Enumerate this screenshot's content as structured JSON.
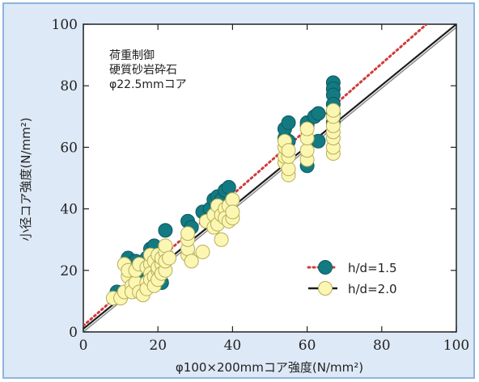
{
  "chart_data": {
    "type": "scatter",
    "xlabel": "φ100×200mmコア強度(N/mm²)",
    "ylabel": "小径コア強度(N/mm²)",
    "xlim": [
      0,
      100
    ],
    "ylim": [
      0,
      100
    ],
    "xticks": [
      "0",
      "20",
      "40",
      "60",
      "80",
      "100"
    ],
    "yticks": [
      "0",
      "20",
      "40",
      "60",
      "80",
      "100"
    ],
    "grid": false,
    "legend_position": "bottom-right",
    "annotation": [
      "荷重制御",
      "硬質砂岩砕石",
      "φ22.5mmコア"
    ],
    "colors": {
      "teal": "#137a82",
      "cream": "#fbf6b2",
      "red": "#d23a3a",
      "black": "#1c1c1c",
      "gray": "#8a8a8a"
    },
    "lines": [
      {
        "style": "dotted",
        "color": "#d23a3a",
        "x": [
          0,
          92
        ],
        "y": [
          2,
          100
        ]
      },
      {
        "style": "solid",
        "color": "#1c1c1c",
        "x": [
          0,
          100
        ],
        "y": [
          1,
          100
        ]
      },
      {
        "style": "solid",
        "color": "#8a8a8a",
        "x": [
          0,
          100
        ],
        "y": [
          0,
          99
        ]
      }
    ],
    "series": [
      {
        "name": "h/d=1.5",
        "color": "#137a82",
        "points": [
          [
            9,
            13
          ],
          [
            12,
            21
          ],
          [
            12,
            24
          ],
          [
            13,
            22
          ],
          [
            14,
            23
          ],
          [
            16,
            19
          ],
          [
            17,
            24
          ],
          [
            18,
            27
          ],
          [
            19,
            28
          ],
          [
            19,
            22
          ],
          [
            20,
            25
          ],
          [
            21,
            22
          ],
          [
            21,
            16
          ],
          [
            22,
            33
          ],
          [
            28,
            36
          ],
          [
            29,
            34
          ],
          [
            32,
            39
          ],
          [
            33,
            36
          ],
          [
            34,
            40
          ],
          [
            35,
            43
          ],
          [
            36,
            44
          ],
          [
            37,
            43
          ],
          [
            38,
            46
          ],
          [
            39,
            47
          ],
          [
            54,
            63
          ],
          [
            54,
            66
          ],
          [
            55,
            68
          ],
          [
            55,
            62
          ],
          [
            60,
            54
          ],
          [
            60,
            67
          ],
          [
            60,
            68
          ],
          [
            62,
            70
          ],
          [
            63,
            62
          ],
          [
            63,
            71
          ],
          [
            67,
            81
          ],
          [
            67,
            79
          ],
          [
            67,
            77
          ],
          [
            67,
            74
          ],
          [
            67,
            71
          ],
          [
            67,
            68
          ]
        ]
      },
      {
        "name": "h/d=2.0",
        "color": "#fbf6b2",
        "points": [
          [
            8,
            11
          ],
          [
            10,
            11
          ],
          [
            11,
            13
          ],
          [
            11,
            22
          ],
          [
            12,
            18
          ],
          [
            12,
            20
          ],
          [
            13,
            15
          ],
          [
            13,
            13
          ],
          [
            14,
            16
          ],
          [
            14,
            20
          ],
          [
            15,
            22
          ],
          [
            15,
            13
          ],
          [
            16,
            12
          ],
          [
            17,
            16
          ],
          [
            17,
            21
          ],
          [
            17,
            14
          ],
          [
            18,
            22
          ],
          [
            18,
            19
          ],
          [
            18,
            17
          ],
          [
            18,
            25
          ],
          [
            19,
            23
          ],
          [
            19,
            18
          ],
          [
            19,
            15
          ],
          [
            20,
            20
          ],
          [
            20,
            17
          ],
          [
            20,
            21
          ],
          [
            20,
            25
          ],
          [
            21,
            22
          ],
          [
            21,
            19
          ],
          [
            21,
            24
          ],
          [
            22,
            20
          ],
          [
            22,
            26
          ],
          [
            22,
            23
          ],
          [
            22,
            28
          ],
          [
            23,
            24
          ],
          [
            28,
            25
          ],
          [
            28,
            27
          ],
          [
            28,
            30
          ],
          [
            28,
            32
          ],
          [
            29,
            23
          ],
          [
            32,
            26
          ],
          [
            33,
            36
          ],
          [
            35,
            34
          ],
          [
            35,
            38
          ],
          [
            36,
            35
          ],
          [
            36,
            41
          ],
          [
            37,
            30
          ],
          [
            37,
            38
          ],
          [
            38,
            40
          ],
          [
            38,
            37
          ],
          [
            39,
            41
          ],
          [
            39,
            36
          ],
          [
            40,
            37
          ],
          [
            40,
            43
          ],
          [
            40,
            39
          ],
          [
            54,
            55
          ],
          [
            54,
            57
          ],
          [
            54,
            60
          ],
          [
            54,
            62
          ],
          [
            55,
            51
          ],
          [
            55,
            53
          ],
          [
            55,
            57
          ],
          [
            55,
            59
          ],
          [
            60,
            56
          ],
          [
            60,
            59
          ],
          [
            60,
            63
          ],
          [
            60,
            66
          ],
          [
            67,
            58
          ],
          [
            67,
            60
          ],
          [
            67,
            63
          ],
          [
            67,
            65
          ],
          [
            67,
            67
          ],
          [
            67,
            70
          ],
          [
            67,
            72
          ]
        ]
      }
    ]
  }
}
